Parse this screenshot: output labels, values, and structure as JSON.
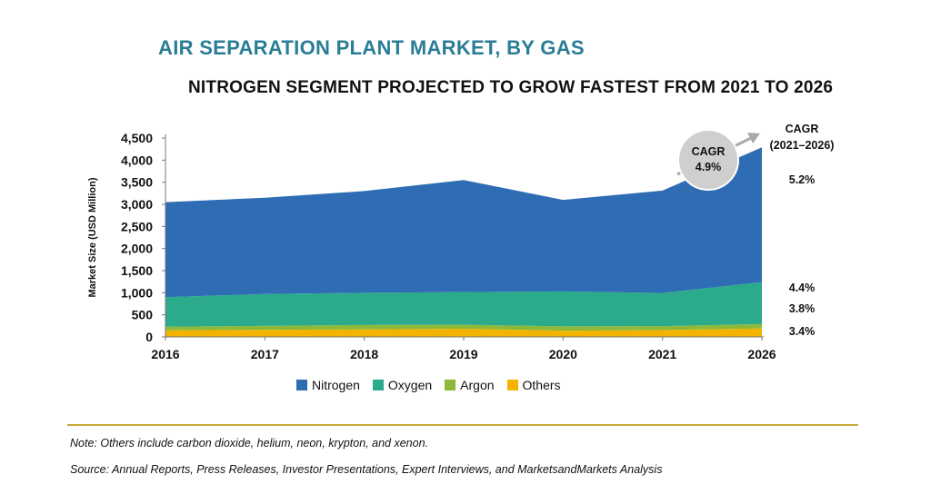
{
  "title": "AIR SEPARATION PLANT MARKET, BY GAS",
  "subtitle": "NITROGEN SEGMENT PROJECTED TO GROW FASTEST FROM 2021 TO 2026",
  "chart_data": {
    "type": "area",
    "stacked": true,
    "x": [
      "2016",
      "2017",
      "2018",
      "2019",
      "2020",
      "2021",
      "2026"
    ],
    "ylabel": "Market Size (USD Million)",
    "ylim": [
      0,
      4500
    ],
    "yticks": [
      "0",
      "500",
      "1,000",
      "1,500",
      "2,000",
      "2,500",
      "3,000",
      "3,500",
      "4,000",
      "4,500"
    ],
    "series": [
      {
        "name": "Others",
        "color": "#f2b400",
        "values": [
          150,
          160,
          170,
          185,
          140,
          155,
          190
        ]
      },
      {
        "name": "Argon",
        "color": "#8db83a",
        "values": [
          80,
          90,
          100,
          90,
          100,
          90,
          100
        ]
      },
      {
        "name": "Oxygen",
        "color": "#2bab8c",
        "values": [
          670,
          720,
          730,
          740,
          790,
          750,
          950
        ]
      },
      {
        "name": "Nitrogen",
        "color": "#2e6db4",
        "values": [
          2150,
          2180,
          2300,
          2535,
          2070,
          2315,
          3050
        ]
      }
    ],
    "cagr_header": [
      "CAGR",
      "(2021–2026)"
    ],
    "cagr_values": [
      "5.2%",
      "4.4%",
      "3.8%",
      "3.4%"
    ],
    "overall_cagr": {
      "label": "CAGR",
      "value": "4.9%"
    },
    "legend_order": [
      "Nitrogen",
      "Oxygen",
      "Argon",
      "Others"
    ],
    "legend_position": "bottom"
  },
  "footer": {
    "note": "Note: Others include carbon dioxide, helium, neon, krypton, and xenon.",
    "source": "Source: Annual Reports, Press Releases, Investor Presentations, Expert Interviews, and MarketsandMarkets Analysis"
  }
}
